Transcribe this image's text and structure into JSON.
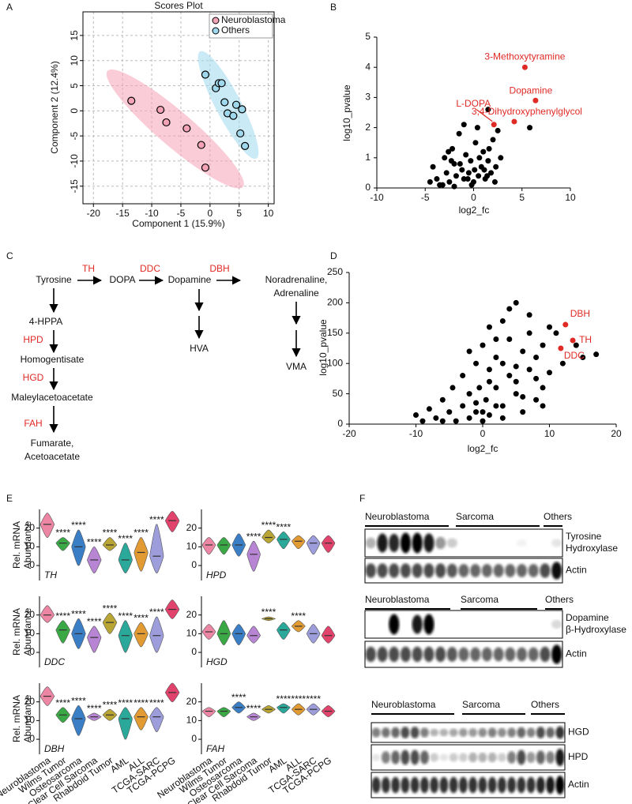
{
  "panel_labels": [
    "A",
    "B",
    "C",
    "D",
    "E",
    "F"
  ],
  "chart_data": [
    {
      "type": "scatter",
      "title": "Scores Plot",
      "x_label": "Component 1 (15.9%)",
      "y_label": "Component 2 (12.4%)",
      "xlim": [
        -21.8,
        11
      ],
      "ylim": [
        -18.5,
        19.7
      ],
      "xticks": [
        -20,
        -15,
        -10,
        -5,
        0,
        5,
        10
      ],
      "yticks": [
        -15,
        -10,
        -5,
        0,
        5,
        10,
        15
      ],
      "grid": true,
      "frame": true,
      "ellipses": true,
      "legend": "upper right",
      "series": [
        {
          "name": "Neuroblastoma",
          "color": "#f4a3b6",
          "x": [
            -13.5,
            -8.5,
            -7.5,
            -4,
            -1.5,
            -0.8
          ],
          "y": [
            2,
            0.2,
            -2.3,
            -3.5,
            -6.8,
            -11.3
          ]
        },
        {
          "name": "Others",
          "color": "#9fd8ec",
          "x": [
            -0.8,
            1,
            1.5,
            2,
            2.5,
            3,
            4,
            4.5,
            5.5,
            5.2,
            6
          ],
          "y": [
            7.2,
            4.5,
            5.5,
            5.5,
            1.7,
            -0.5,
            -1,
            1.2,
            0.3,
            -4.5,
            -7
          ]
        }
      ]
    },
    {
      "type": "scatter",
      "x_label": "log2_fc",
      "y_label": "log10_pvalue",
      "xlim": [
        -10,
        10
      ],
      "ylim": [
        0,
        5
      ],
      "xticks": [
        -10,
        -5,
        0,
        5,
        10
      ],
      "yticks": [
        0,
        1,
        2,
        3,
        4,
        5
      ],
      "series": [
        {
          "color": "#000000",
          "x": [
            -4.2,
            -3.8,
            -3.5,
            -3,
            -2.8,
            -2.5,
            -2.2,
            -2,
            -1.8,
            -1.5,
            -1.2,
            -1,
            -0.8,
            -0.5,
            -0.3,
            0,
            0.2,
            0.5,
            0.8,
            1,
            1.2,
            1.5,
            1.8,
            2,
            2.2,
            2.5,
            -2.6,
            -1.4,
            -0.6,
            0.4,
            1.1,
            -3.2,
            -2,
            0.6,
            1.6,
            2.8,
            -1,
            0.1,
            -0.2,
            1.4,
            5.8,
            1.5,
            -2.3,
            2.3,
            -4.5
          ],
          "y": [
            0.7,
            0.3,
            0.1,
            1.0,
            0.5,
            0.2,
            1.3,
            0.8,
            0.4,
            1.8,
            0.6,
            0.3,
            1.1,
            0.5,
            0.9,
            0.2,
            1.5,
            0.4,
            0.7,
            1.2,
            0.3,
            0.9,
            0.5,
            1.6,
            0.2,
            1.9,
            1.2,
            0.8,
            0.3,
            2.0,
            0.6,
            0.1,
            0.05,
            1.0,
            1.3,
            1.0,
            2.1,
            0.6,
            0.1,
            0.4,
            2.0,
            2.6,
            0.9,
            0.7,
            0.2
          ]
        },
        {
          "color": "#e02a26",
          "x": [
            5.3,
            6.4,
            4.2,
            2.1
          ],
          "y": [
            4.0,
            2.9,
            2.2,
            2.1
          ],
          "point_labels": [
            "3-Methoxytyramine",
            "Dopamine",
            "3,4-Dihydroxyphenylglycol",
            "L-DOPA"
          ]
        }
      ]
    },
    {
      "type": "scatter",
      "x_label": "log2_fc",
      "y_label": "log10_pvalue",
      "xlim": [
        -20,
        20
      ],
      "ylim": [
        0,
        250
      ],
      "xticks": [
        -20,
        -10,
        0,
        10,
        20
      ],
      "yticks": [
        0,
        50,
        100,
        150,
        200,
        250
      ],
      "series": [
        {
          "color": "#000000",
          "x": [
            -10,
            -8,
            -7,
            -6,
            -5,
            -4.5,
            -4,
            -3,
            -3,
            -2,
            -2,
            -1,
            -1,
            -0.5,
            0,
            0,
            0.5,
            1,
            1,
            2,
            2,
            3,
            3,
            4,
            4,
            5,
            5,
            6,
            6,
            7,
            7,
            8,
            8,
            9,
            9,
            10,
            10,
            11,
            12,
            14,
            15,
            17,
            -9,
            -6,
            -2,
            1,
            2,
            3,
            4,
            5,
            6,
            7,
            8,
            3,
            2,
            1,
            0,
            -1,
            5,
            9
          ],
          "y": [
            15,
            25,
            10,
            40,
            20,
            60,
            5,
            30,
            80,
            50,
            10,
            100,
            20,
            60,
            5,
            130,
            40,
            90,
            15,
            110,
            60,
            170,
            30,
            140,
            80,
            200,
            50,
            120,
            20,
            150,
            90,
            110,
            40,
            130,
            60,
            160,
            85,
            150,
            100,
            130,
            110,
            115,
            5,
            5,
            120,
            160,
            140,
            100,
            190,
            70,
            45,
            180,
            75,
            10,
            30,
            70,
            20,
            35,
            95,
            30
          ]
        },
        {
          "color": "#e02a26",
          "x": [
            12.4,
            13.5,
            11.7
          ],
          "y": [
            164,
            138,
            125
          ],
          "point_labels": [
            "DBH",
            "TH",
            "DDC"
          ]
        }
      ]
    },
    {
      "type": "violin",
      "y_label": [
        "Rel. mRNA",
        "Abundance"
      ],
      "categories": [
        "Neuroblastoma",
        "Wilms Tumor",
        "Osteosarcoma",
        "Clear Cell Sarcoma",
        "Rhabdoid Tumor",
        "AML",
        "ALL",
        "TCGA-SARC",
        "TCGA-PCPG"
      ],
      "colors": [
        "#ec86a4",
        "#3aa845",
        "#3a7ec6",
        "#b884d4",
        "#b9a534",
        "#2aa99a",
        "#e29b32",
        "#9d9ddb",
        "#e2436c"
      ],
      "ylim": [
        -8,
        30
      ],
      "yticks": [
        0,
        10,
        20
      ],
      "panels": [
        {
          "gene": "TH",
          "medians": [
            22,
            12,
            10,
            3,
            11,
            3,
            7,
            5,
            24
          ],
          "mins": [
            15,
            8,
            0,
            -4,
            8,
            -4,
            -3,
            -4,
            18
          ],
          "maxs": [
            28,
            15,
            19,
            10,
            15,
            12,
            15,
            22,
            29
          ],
          "stars": [
            null,
            "****",
            "****",
            "****",
            "****",
            "****",
            "****",
            "****",
            null
          ]
        },
        {
          "gene": "HPD",
          "medians": [
            11,
            11,
            11,
            6,
            15,
            14,
            13,
            12,
            12
          ],
          "mins": [
            6,
            6,
            5,
            -3,
            12,
            9,
            9,
            6,
            7
          ],
          "maxs": [
            15,
            15,
            17,
            13,
            19,
            18,
            16,
            16,
            16
          ],
          "stars": [
            null,
            null,
            null,
            "****",
            "****",
            "****",
            null,
            null,
            null
          ]
        },
        {
          "gene": "DDC",
          "medians": [
            20,
            12,
            10,
            8,
            16,
            9,
            10,
            9,
            23
          ],
          "mins": [
            16,
            5,
            2,
            0,
            10,
            0,
            3,
            0,
            18
          ],
          "maxs": [
            25,
            17,
            18,
            14,
            21,
            17,
            16,
            19,
            28
          ],
          "stars": [
            null,
            "****",
            "****",
            "****",
            "****",
            "****",
            "****",
            "****",
            null
          ]
        },
        {
          "gene": "HGD",
          "medians": [
            11,
            10,
            10,
            9,
            18,
            12,
            14,
            10,
            9
          ],
          "mins": [
            7,
            4,
            4,
            5,
            17,
            7,
            11,
            5,
            5
          ],
          "maxs": [
            15,
            17,
            15,
            14,
            19,
            16,
            17,
            15,
            14
          ],
          "stars": [
            null,
            null,
            null,
            null,
            "****",
            null,
            "****",
            null,
            null
          ]
        },
        {
          "gene": "DBH",
          "medians": [
            23,
            13,
            11,
            12,
            13,
            11,
            12,
            12,
            25
          ],
          "mins": [
            18,
            9,
            2,
            10,
            10,
            0,
            5,
            4,
            20
          ],
          "maxs": [
            28,
            17,
            18,
            14,
            16,
            17,
            17,
            17,
            30
          ],
          "stars": [
            null,
            "****",
            "****",
            "****",
            "****",
            "****",
            "****",
            "****",
            null
          ]
        },
        {
          "gene": "FAH",
          "medians": [
            15,
            15,
            17,
            12,
            16,
            17,
            16,
            16,
            15
          ],
          "mins": [
            12,
            12,
            14,
            10,
            14,
            14,
            13,
            13,
            12
          ],
          "maxs": [
            17,
            17,
            20,
            14,
            18,
            19,
            19,
            19,
            18
          ],
          "stars": [
            null,
            null,
            "****",
            "****",
            null,
            "****",
            "****",
            "****",
            null
          ]
        }
      ]
    }
  ],
  "pathway": {
    "nodes": [
      [
        "Tyrosine"
      ],
      [
        "DOPA"
      ],
      [
        "Dopamine"
      ],
      [
        "Noradrenaline,",
        "Adrenaline"
      ],
      [
        "4-HPPA"
      ],
      [
        "Homogentisate"
      ],
      [
        "Maleylacetoacetate"
      ],
      [
        "Fumarate,",
        "Acetoacetate"
      ],
      [
        "HVA"
      ],
      [
        "VMA"
      ]
    ],
    "enzymes": [
      "TH",
      "DDC",
      "DBH",
      "HPD",
      "HGD",
      "FAH"
    ]
  },
  "blots": [
    {
      "groups": [
        "Neuroblastoma",
        "Sarcoma",
        "Others"
      ],
      "rows": [
        [
          "Tyrosine",
          "Hydroxylase"
        ],
        [
          "Actin"
        ]
      ]
    },
    {
      "groups": [
        "Neuroblastoma",
        "Sarcoma",
        "Others"
      ],
      "rows": [
        [
          "Dopamine",
          "β-Hydroxylase"
        ],
        [
          "Actin"
        ]
      ]
    },
    {
      "groups": [
        "Neuroblastoma",
        "Sarcoma",
        "Others"
      ],
      "rows": [
        [
          "HGD"
        ],
        [
          "HPD"
        ],
        [
          "Actin"
        ]
      ]
    }
  ]
}
